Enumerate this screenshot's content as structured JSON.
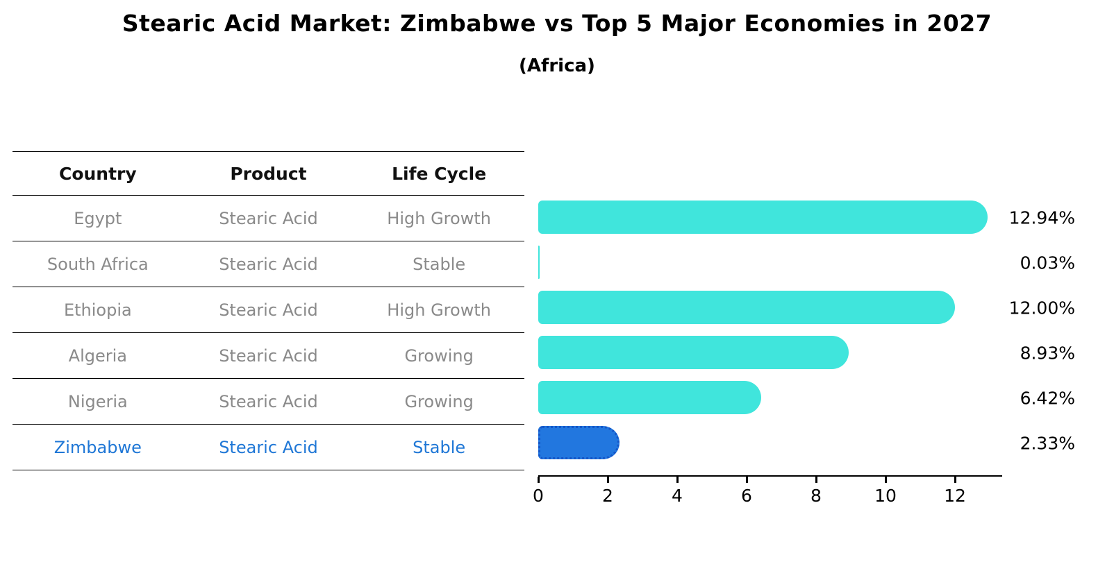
{
  "title": "Stearic Acid Market: Zimbabwe vs Top 5 Major Economies in 2027",
  "subtitle": "(Africa)",
  "table": {
    "headers": [
      "Country",
      "Product",
      "Life Cycle"
    ],
    "rows": [
      {
        "country": "Egypt",
        "product": "Stearic Acid",
        "life_cycle": "High Growth",
        "highlight": false
      },
      {
        "country": "South Africa",
        "product": "Stearic Acid",
        "life_cycle": "Stable",
        "highlight": false
      },
      {
        "country": "Ethiopia",
        "product": "Stearic Acid",
        "life_cycle": "High Growth",
        "highlight": false
      },
      {
        "country": "Algeria",
        "product": "Stearic Acid",
        "life_cycle": "Growing",
        "highlight": false
      },
      {
        "country": "Nigeria",
        "product": "Stearic Acid",
        "life_cycle": "Growing",
        "highlight": false
      },
      {
        "country": "Zimbabwe",
        "product": "Stearic Acid",
        "life_cycle": "Stable",
        "highlight": true
      }
    ]
  },
  "chart_data": {
    "type": "bar",
    "orientation": "horizontal",
    "title": "Stearic Acid Market: Zimbabwe vs Top 5 Major Economies in 2027",
    "subtitle": "(Africa)",
    "categories": [
      "Egypt",
      "South Africa",
      "Ethiopia",
      "Algeria",
      "Nigeria",
      "Zimbabwe"
    ],
    "values": [
      12.94,
      0.03,
      12.0,
      8.93,
      6.42,
      2.33
    ],
    "value_labels": [
      "12.94%",
      "0.03%",
      "12.00%",
      "8.93%",
      "6.42%",
      "2.33%"
    ],
    "xlabel": "",
    "ylabel": "",
    "xlim": [
      0,
      13.4
    ],
    "xticks": [
      0,
      2,
      4,
      6,
      8,
      10,
      12
    ],
    "grid": false,
    "legend": false,
    "highlight_category": "Zimbabwe",
    "colors": {
      "bar": "#40E5DC",
      "highlight_bar": "#2277DF",
      "highlight_border": "#1456C8",
      "row_text": "#8a8a8a",
      "highlight_text": "#1F77D6",
      "value_text": "#000000"
    }
  }
}
